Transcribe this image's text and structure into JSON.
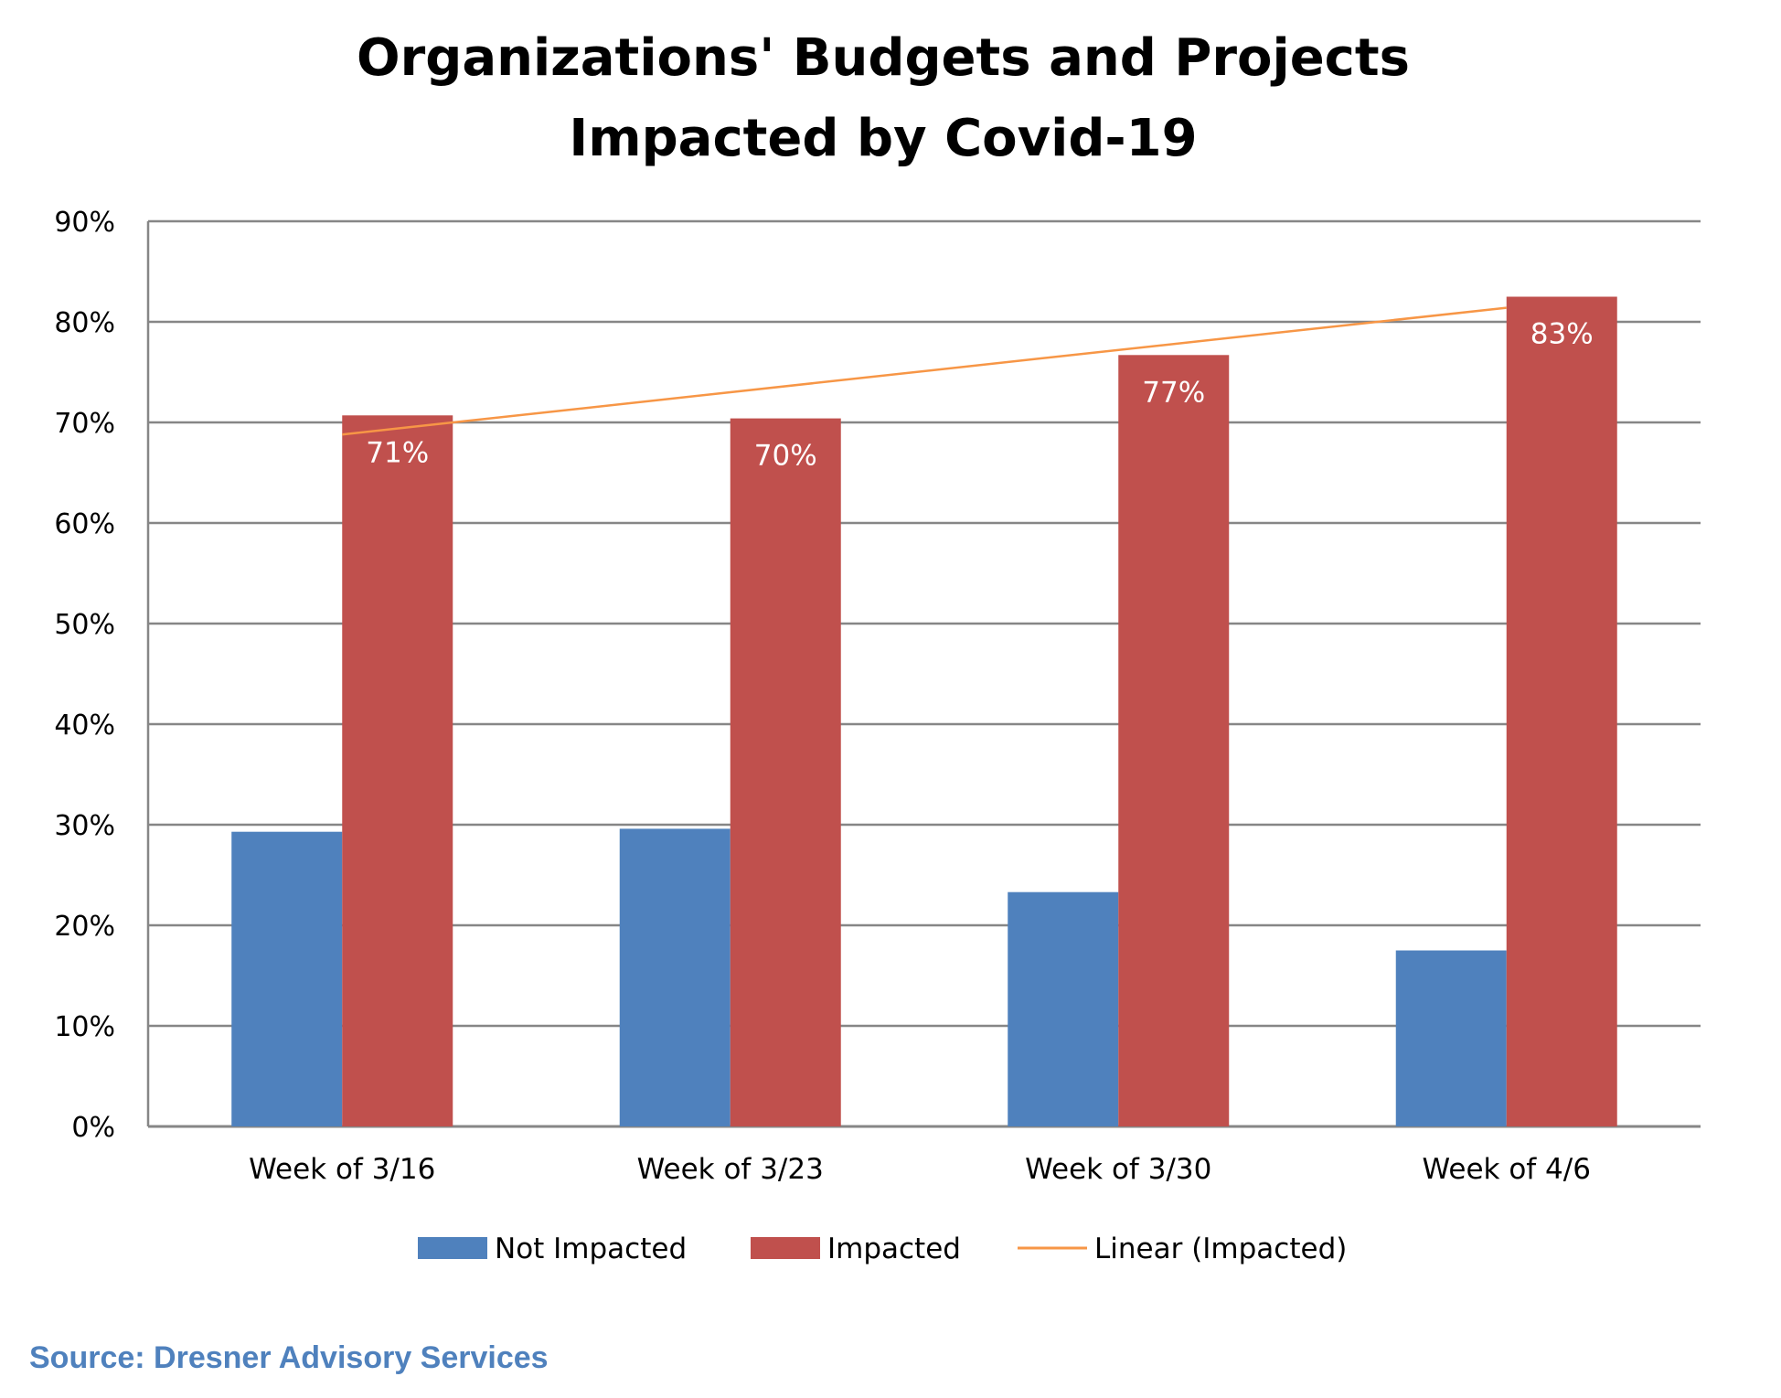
{
  "chart_data": {
    "type": "bar",
    "title_lines": [
      "Organizations' Budgets and Projects",
      "Impacted by Covid-19"
    ],
    "xlabel": "",
    "ylabel": "",
    "categories": [
      "Week of 3/16",
      "Week of 3/23",
      "Week of 3/30",
      "Week of 4/6"
    ],
    "series": [
      {
        "name": "Not Impacted",
        "values": [
          29.3,
          29.6,
          23.3,
          17.5
        ],
        "color": "#4f81bd"
      },
      {
        "name": "Impacted",
        "values": [
          70.7,
          70.4,
          76.7,
          82.5
        ],
        "color": "#c0504d",
        "data_labels": [
          "71%",
          "70%",
          "77%",
          "83%"
        ]
      }
    ],
    "trendline": {
      "name": "Linear (Impacted)",
      "of_series": "Impacted",
      "type": "linear",
      "start": 68.8,
      "end": 81.4,
      "color": "#f79646"
    },
    "ylim": [
      0,
      90
    ],
    "ytick_values": [
      0,
      10,
      20,
      30,
      40,
      50,
      60,
      70,
      80,
      90
    ],
    "ytick_labels": [
      "0%",
      "10%",
      "20%",
      "30%",
      "40%",
      "50%",
      "60%",
      "70%",
      "80%",
      "90%"
    ],
    "grid": true,
    "legend_position": "bottom",
    "gridline_color": "#868686",
    "source": "Source: Dresner Advisory Services",
    "source_color": "#4f81bd"
  }
}
